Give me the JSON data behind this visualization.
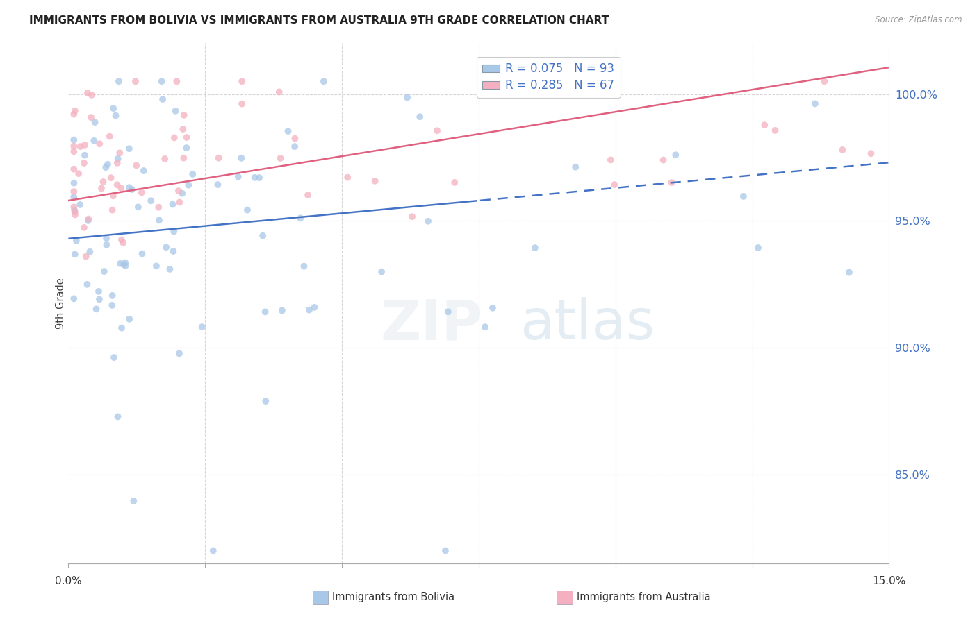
{
  "title": "IMMIGRANTS FROM BOLIVIA VS IMMIGRANTS FROM AUSTRALIA 9TH GRADE CORRELATION CHART",
  "source": "Source: ZipAtlas.com",
  "ylabel": "9th Grade",
  "yaxis_labels": [
    "100.0%",
    "95.0%",
    "90.0%",
    "85.0%"
  ],
  "yaxis_values": [
    1.0,
    0.95,
    0.9,
    0.85
  ],
  "xlim": [
    0.0,
    0.15
  ],
  "ylim": [
    0.815,
    1.02
  ],
  "legend_r1": "R = 0.075",
  "legend_n1": "N = 93",
  "legend_r2": "R = 0.285",
  "legend_n2": "N = 67",
  "color_bolivia": "#a8c8e8",
  "color_australia": "#f4b0c0",
  "color_bolivia_line": "#4472c4",
  "color_australia_line": "#e06080",
  "grid_color": "#cccccc",
  "background_color": "#ffffff",
  "watermark_zip_color": "#d0dce8",
  "watermark_atlas_color": "#b8ccd8"
}
